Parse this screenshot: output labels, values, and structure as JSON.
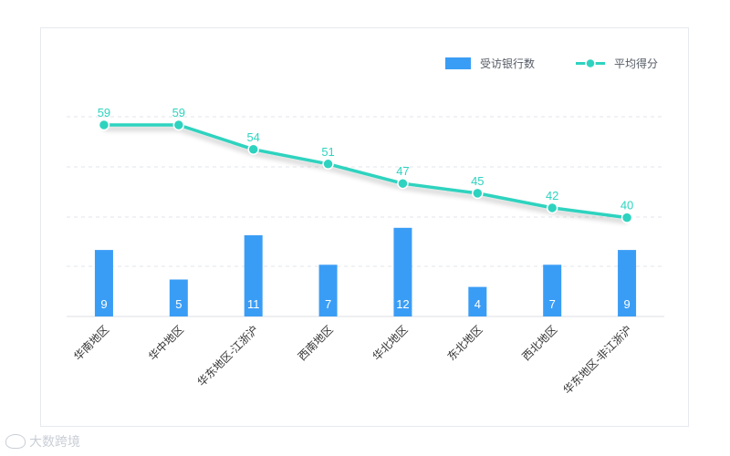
{
  "chart_data": {
    "type": "bar",
    "categories": [
      "华南地区",
      "华中地区",
      "华东地区-江浙沪",
      "西南地区",
      "华北地区",
      "东北地区",
      "西北地区",
      "华东地区-非江浙沪"
    ],
    "series": [
      {
        "name": "受访银行数",
        "type": "bar",
        "values": [
          9,
          5,
          11,
          7,
          12,
          4,
          7,
          9
        ],
        "color": "#3a9df5"
      },
      {
        "name": "平均得分",
        "type": "line",
        "values": [
          59,
          59,
          54,
          51,
          47,
          45,
          42,
          40
        ],
        "color": "#2ed3bf"
      }
    ],
    "legend_position": "top-right",
    "grid": "horizontal-dashed"
  },
  "watermark": {
    "text": "大数跨境"
  }
}
